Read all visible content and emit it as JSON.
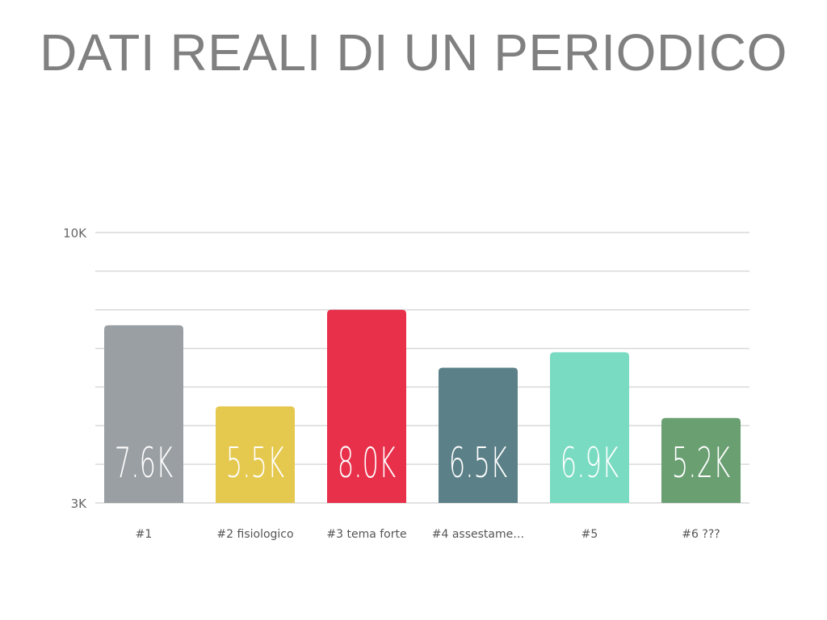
{
  "title": "DATI REALI DI UN PERIODICO",
  "chart_data": {
    "type": "bar",
    "title": "DATI REALI DI UN PERIODICO",
    "categories": [
      "#1",
      "#2 fisiologico",
      "#3 tema forte",
      "#4 assestame…",
      "#5",
      "#6 ???"
    ],
    "values": [
      7.6,
      5.5,
      8.0,
      6.5,
      6.9,
      5.2
    ],
    "value_labels": [
      "7.6K",
      "5.5K",
      "8.0K",
      "6.5K",
      "6.9K",
      "5.2K"
    ],
    "colors": [
      "#9a9fa3",
      "#e5c84e",
      "#e8304b",
      "#5b8087",
      "#79dbc1",
      "#6a9f72"
    ],
    "unit": "K",
    "ylim": [
      3,
      10
    ],
    "yticks": [
      3,
      10
    ],
    "ytick_labels": [
      "3K",
      "10K"
    ],
    "grid_step": 1,
    "grid": true,
    "xlabel": "",
    "ylabel": ""
  }
}
